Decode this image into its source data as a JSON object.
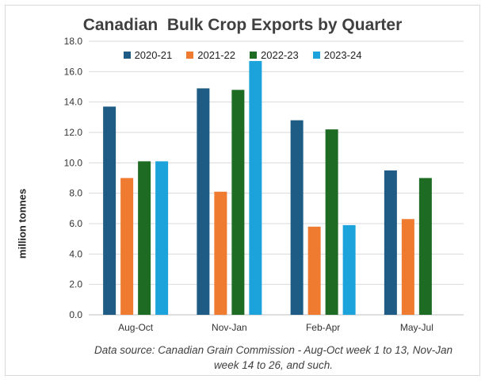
{
  "chart_data": {
    "type": "bar",
    "title": "Canadian  Bulk Crop Exports by Quarter",
    "ylabel": "million tonnes",
    "xlabel": "",
    "categories": [
      "Aug-Oct",
      "Nov-Jan",
      "Feb-Apr",
      "May-Jul"
    ],
    "ylim": [
      0,
      18
    ],
    "yticks": [
      "0.0",
      "2.0",
      "4.0",
      "6.0",
      "8.0",
      "10.0",
      "12.0",
      "14.0",
      "16.0",
      "18.0"
    ],
    "grid": true,
    "legend_position": "top",
    "series": [
      {
        "name": "2020-21",
        "color": "#1f5c85",
        "values": [
          13.7,
          14.9,
          12.8,
          9.5
        ]
      },
      {
        "name": "2021-22",
        "color": "#ee7b30",
        "values": [
          9.0,
          8.1,
          5.8,
          6.3
        ]
      },
      {
        "name": "2022-23",
        "color": "#1e6b24",
        "values": [
          10.1,
          14.8,
          12.2,
          9.0
        ]
      },
      {
        "name": "2023-24",
        "color": "#1da3dc",
        "values": [
          10.1,
          16.7,
          5.9,
          null
        ]
      }
    ],
    "source_note": "Data source:  Canadian Grain Commission - Aug-Oct week 1 to 13, Nov-Jan week 14  to 26, and such."
  }
}
